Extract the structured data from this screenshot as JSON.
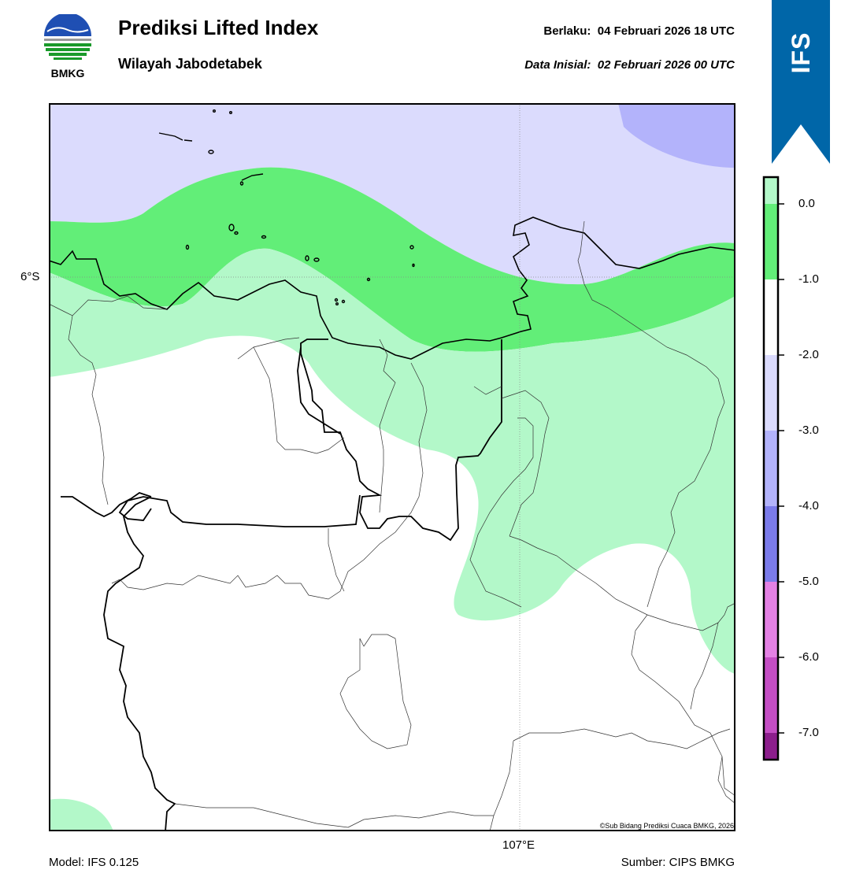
{
  "header": {
    "title": "Prediksi Lifted Index",
    "subtitle": "Wilayah Jabodetabek",
    "valid_label": "Berlaku:",
    "valid_time": "04 Februari 2026 18 UTC",
    "init_label": "Data Inisial:",
    "init_time": "02 Februari 2026 00 UTC"
  },
  "logo": {
    "text": "BMKG",
    "icon": "bmkg-logo-icon"
  },
  "badge": {
    "text": "IFS",
    "color": "#0066a8"
  },
  "map": {
    "lat_label": "6°S",
    "lon_label": "107°E",
    "copyright": "©Sub Bidang Prediksi Cuaca BMKG, 2026"
  },
  "footer": {
    "model": "Model: IFS 0.125",
    "source": "Sumber: CIPS BMKG"
  },
  "colorbar": {
    "ticks": [
      "0.0",
      "-1.0",
      "-2.0",
      "-3.0",
      "-4.0",
      "-5.0",
      "-6.0",
      "-7.0"
    ],
    "colors": [
      "#b3f8c9",
      "#62ee78",
      "#ffffff",
      "#dbdbfd",
      "#b3b3fb",
      "#7b7bea",
      "#e481e4",
      "#c44ec4",
      "#8c1e8c"
    ]
  }
}
